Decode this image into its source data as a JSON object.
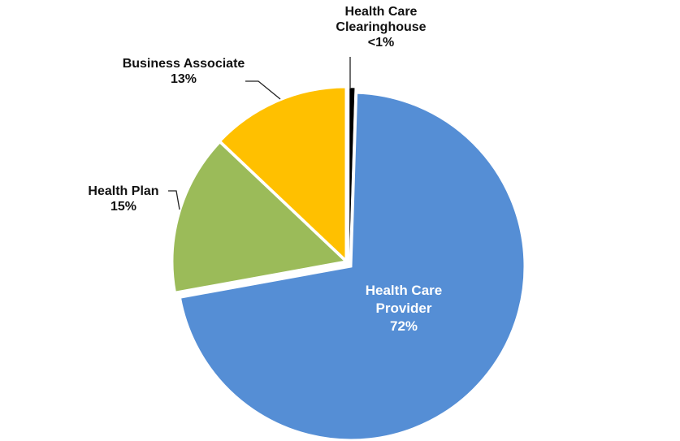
{
  "chart_data": {
    "type": "pie",
    "start_angle_deg": 0,
    "direction": "clockwise",
    "slices": [
      {
        "name": "Health Care Clearinghouse",
        "label": "<1%",
        "value": 0.5,
        "color": "#000000"
      },
      {
        "name": "Health Care Provider",
        "label": "72%",
        "value": 72,
        "color": "#558ED5"
      },
      {
        "name": "Health Plan",
        "label": "15%",
        "value": 15,
        "color": "#9BBB59"
      },
      {
        "name": "Business Associate",
        "label": "13%",
        "value": 13,
        "color": "#FFC000"
      }
    ]
  }
}
